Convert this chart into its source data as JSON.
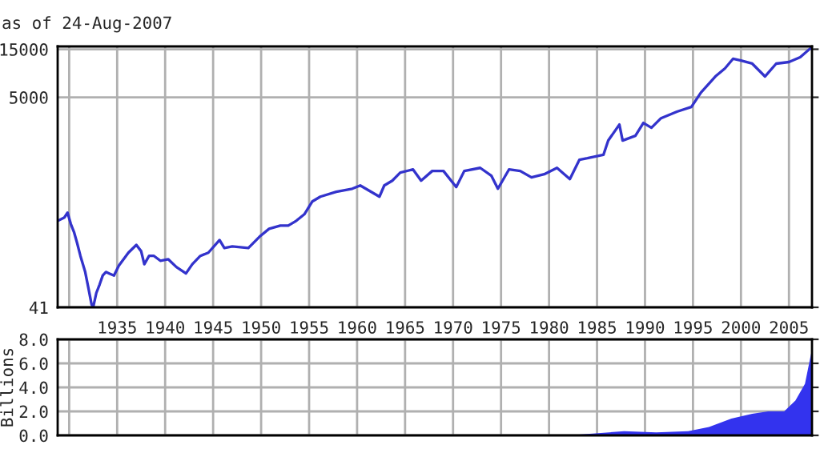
{
  "chart_data": [
    {
      "type": "line",
      "subtitle": "as of 24-Aug-2007",
      "log": "y",
      "grid": true,
      "tick_labels": true,
      "xlim": [
        1928.8,
        2007.4
      ],
      "ylim": [
        41,
        16000
      ],
      "xticks": [
        {
          "value": 1930,
          "label": null
        },
        1935,
        1940,
        1945,
        1950,
        1955,
        1960,
        1965,
        1970,
        1975,
        1980,
        1985,
        1990,
        1995,
        2000,
        2005
      ],
      "yticks": [
        41,
        5000,
        15000
      ],
      "x": [
        1928.83,
        1929.5,
        1929.83,
        1930.17,
        1930.5,
        1930.83,
        1931.17,
        1931.67,
        1932,
        1932.33,
        1932.5,
        1932.83,
        1933.17,
        1933.5,
        1933.83,
        1934.17,
        1934.67,
        1935.17,
        1936.17,
        1937,
        1937.5,
        1937.83,
        1938.33,
        1938.83,
        1939.5,
        1940.33,
        1941.17,
        1942.17,
        1942.83,
        1943.67,
        1944.5,
        1945.67,
        1946.17,
        1947,
        1948.67,
        1949.83,
        1950.83,
        1952,
        1952.83,
        1953.67,
        1954.5,
        1955.33,
        1956.17,
        1957.83,
        1959.5,
        1960.33,
        1962.33,
        1962.83,
        1963.67,
        1964.5,
        1965.83,
        1966.67,
        1967.83,
        1969,
        1970.33,
        1971.17,
        1972.83,
        1974,
        1974.67,
        1975.83,
        1977,
        1978.17,
        1979.5,
        1980.83,
        1982.17,
        1983.17,
        1984,
        1985.67,
        1986.17,
        1987.33,
        1987.67,
        1989,
        1989.83,
        1990.67,
        1991.67,
        1993.33,
        1994.83,
        1995.83,
        1997.33,
        1998.33,
        1999.17,
        2000,
        2001.17,
        2002.5,
        2003.67,
        2005,
        2006.17,
        2007.33
      ],
      "series": [
        {
          "color": "#3333cc",
          "values": [
            297,
            320,
            357,
            276,
            230,
            178,
            133,
            92,
            64,
            44,
            41,
            57,
            69,
            85,
            92,
            89,
            85,
            106,
            143,
            171,
            148,
            110,
            133,
            133,
            119,
            123,
            103,
            89,
            110,
            133,
            143,
            191,
            159,
            165,
            159,
            206,
            247,
            266,
            266,
            297,
            344,
            461,
            515,
            575,
            618,
            665,
            515,
            665,
            743,
            893,
            960,
            743,
            927,
            927,
            641,
            927,
            995,
            830,
            618,
            960,
            927,
            800,
            861,
            995,
            771,
            1200,
            1240,
            1340,
            1860,
            2680,
            1860,
            2075,
            2780,
            2490,
            3100,
            3600,
            4010,
            5580,
            8050,
            9680,
            12050,
            11600,
            10800,
            8050,
            10800,
            11200,
            12500,
            15600
          ]
        }
      ]
    },
    {
      "type": "area",
      "ylabel": "Billions",
      "grid": true,
      "tick_labels": "y",
      "xlim": [
        1928.8,
        2007.4
      ],
      "ylim": [
        0,
        8
      ],
      "xticks": [
        1930,
        1935,
        1940,
        1945,
        1950,
        1955,
        1960,
        1965,
        1970,
        1975,
        1980,
        1985,
        1990,
        1995,
        2000,
        2005
      ],
      "yticks": [
        {
          "value": 0,
          "label": "0.0"
        },
        {
          "value": 2,
          "label": "2.0"
        },
        {
          "value": 4,
          "label": "4.0"
        },
        {
          "value": 6,
          "label": "6.0"
        },
        {
          "value": 8,
          "label": "8.0"
        }
      ],
      "x": [
        1982.83,
        1987.83,
        1991.17,
        1994.5,
        1996.67,
        1999,
        2001.17,
        2002.83,
        2004.5,
        2005.67,
        2006.67,
        2007.33
      ],
      "series": [
        {
          "color": "#3333ee",
          "values": [
            0.05,
            0.35,
            0.25,
            0.35,
            0.7,
            1.4,
            1.8,
            2.0,
            2.0,
            2.9,
            4.3,
            6.9
          ]
        }
      ]
    }
  ]
}
